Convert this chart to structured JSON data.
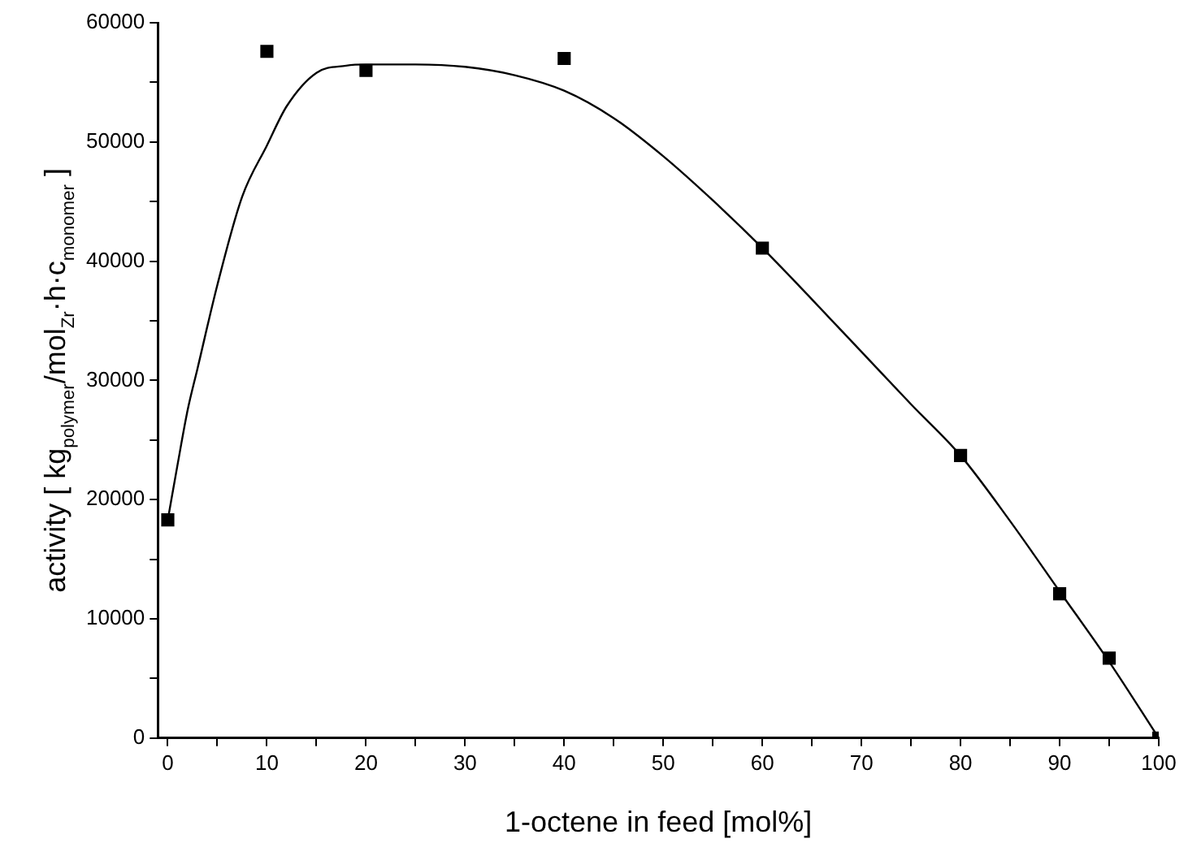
{
  "chart_data": {
    "type": "scatter",
    "xlabel": "1-octene in feed [mol%]",
    "ylabel": "activity [ kg$_{polymer}$/mol$_{Zr}$·h·c$_{monomer}$ ]",
    "series": [
      {
        "color": "#000000",
        "marker": "square",
        "x": [
          0,
          10,
          20,
          40,
          60,
          80,
          90,
          95,
          100
        ],
        "values": [
          18300,
          57600,
          56000,
          57000,
          41100,
          23700,
          12100,
          6700,
          0
        ]
      },
      {
        "type": "line",
        "color": "#000000",
        "marker": "none",
        "line_style": "solid",
        "x": [
          0,
          1,
          2,
          3,
          5,
          7.5,
          10,
          12,
          15,
          18,
          20,
          25,
          30,
          35,
          40,
          45,
          50,
          55,
          60,
          65,
          70,
          75,
          80,
          85,
          90,
          95,
          100
        ],
        "values": [
          18300,
          23000,
          27500,
          31000,
          38000,
          45400,
          49700,
          53000,
          55800,
          56400,
          56500,
          56500,
          56300,
          55600,
          54300,
          52000,
          48800,
          45100,
          41100,
          36800,
          32400,
          28000,
          23700,
          18200,
          12300,
          6400,
          0
        ]
      }
    ],
    "xlim": [
      -1,
      100
    ],
    "ylim": [
      0,
      60000
    ],
    "xticks": [
      0,
      {
        "value": 5,
        "label": null
      },
      10,
      {
        "value": 15,
        "label": null
      },
      20,
      {
        "value": 25,
        "label": null
      },
      30,
      {
        "value": 35,
        "label": null
      },
      40,
      {
        "value": 45,
        "label": null
      },
      50,
      {
        "value": 55,
        "label": null
      },
      60,
      {
        "value": 65,
        "label": null
      },
      70,
      {
        "value": 75,
        "label": null
      },
      80,
      {
        "value": 85,
        "label": null
      },
      90,
      {
        "value": 95,
        "label": null
      },
      100
    ],
    "yticks": [
      0,
      {
        "value": 5000,
        "label": null
      },
      10000,
      {
        "value": 15000,
        "label": null
      },
      20000,
      {
        "value": 25000,
        "label": null
      },
      30000,
      {
        "value": 35000,
        "label": null
      },
      40000,
      {
        "value": 45000,
        "label": null
      },
      50000,
      {
        "value": 55000,
        "label": null
      },
      60000
    ],
    "grid": false,
    "legend": false
  }
}
